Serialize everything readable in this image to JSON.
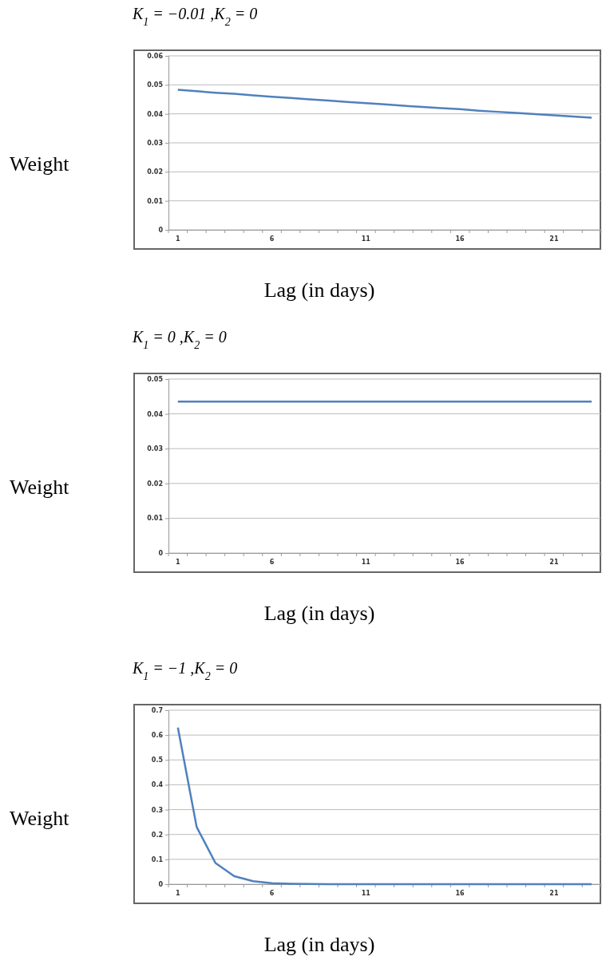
{
  "chart_data": [
    {
      "type": "line",
      "title": "K$_{1}$ = −0.01 ,K$_{2}$ = 0",
      "xlabel": "Lag (in days)",
      "ylabel": "Weight",
      "categories": [
        "1",
        null,
        null,
        null,
        null,
        "6",
        null,
        null,
        null,
        null,
        "11",
        null,
        null,
        null,
        null,
        "16",
        null,
        null,
        null,
        null,
        "21",
        null,
        null
      ],
      "series": [
        {
          "color": "#4f81bd",
          "values": [
            0.0483,
            0.0478,
            0.0473,
            0.0469,
            0.0464,
            0.0459,
            0.0455,
            0.045,
            0.0446,
            0.0441,
            0.0437,
            0.0433,
            0.0428,
            0.0424,
            0.042,
            0.0416,
            0.0411,
            0.0407,
            0.0403,
            0.0399,
            0.0395,
            0.0391,
            0.0387
          ]
        }
      ],
      "ylim": [
        0,
        0.06
      ],
      "yticks": [
        0,
        0.01,
        0.02,
        0.03,
        0.04,
        0.05,
        0.06
      ],
      "grid": "y",
      "marker": "none",
      "line_style": "solid"
    },
    {
      "type": "line",
      "title": "K$_{1}$ = 0 ,K$_{2}$ = 0",
      "xlabel": "Lag (in days)",
      "ylabel": "Weight",
      "categories": [
        "1",
        null,
        null,
        null,
        null,
        "6",
        null,
        null,
        null,
        null,
        "11",
        null,
        null,
        null,
        null,
        "16",
        null,
        null,
        null,
        null,
        "21",
        null,
        null
      ],
      "series": [
        {
          "color": "#4f81bd",
          "values": [
            0.0435,
            0.0435,
            0.0435,
            0.0435,
            0.0435,
            0.0435,
            0.0435,
            0.0435,
            0.0435,
            0.0435,
            0.0435,
            0.0435,
            0.0435,
            0.0435,
            0.0435,
            0.0435,
            0.0435,
            0.0435,
            0.0435,
            0.0435,
            0.0435,
            0.0435,
            0.0435
          ]
        }
      ],
      "ylim": [
        0,
        0.05
      ],
      "yticks": [
        0,
        0.01,
        0.02,
        0.03,
        0.04,
        0.05
      ],
      "grid": "y",
      "marker": "none",
      "line_style": "solid"
    },
    {
      "type": "line",
      "title": "K$_{1}$ = −1 ,K$_{2}$ = 0",
      "xlabel": "Lag (in days)",
      "ylabel": "Weight",
      "categories": [
        "1",
        null,
        null,
        null,
        null,
        "6",
        null,
        null,
        null,
        null,
        "11",
        null,
        null,
        null,
        null,
        "16",
        null,
        null,
        null,
        null,
        "21",
        null,
        null
      ],
      "series": [
        {
          "color": "#4f81bd",
          "values": [
            0.63,
            0.23,
            0.085,
            0.032,
            0.012,
            0.004,
            0.002,
            0.001,
            0,
            0,
            0,
            0,
            0,
            0,
            0,
            0,
            0,
            0,
            0,
            0,
            0,
            0,
            0
          ]
        }
      ],
      "ylim": [
        0,
        0.7
      ],
      "yticks": [
        0,
        0.1,
        0.2,
        0.3,
        0.4,
        0.5,
        0.6,
        0.7
      ],
      "grid": "y",
      "marker": "none",
      "line_style": "solid"
    }
  ]
}
